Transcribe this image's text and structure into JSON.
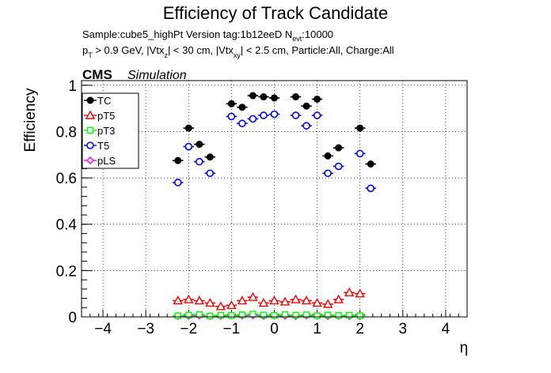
{
  "chart_data": {
    "type": "scatter",
    "title": "Efficiency of Track Candidate",
    "subtitle_line1": "Sample:cube5_highPt   Version tag:1b12eeD  N",
    "subtitle_line1_sub": "evt",
    "subtitle_line1_end": ":10000",
    "subtitle_line2": "p",
    "subtitle_line2_sub1": "T",
    "subtitle_line2_mid1": " > 0.9 GeV, |Vtx",
    "subtitle_line2_sub2": "z",
    "subtitle_line2_mid2": "| < 30 cm, |Vtx",
    "subtitle_line2_sub3": "xy",
    "subtitle_line2_end": "| < 2.5 cm, Particle:All, Charge:All",
    "cms_label": "CMS",
    "simulation_label": "Simulation",
    "xlabel": "η",
    "ylabel": "Efficiency",
    "xlim": [
      -4.5,
      4.5
    ],
    "ylim": [
      0,
      1.02
    ],
    "xticks": [
      "−4",
      "−3",
      "−2",
      "−1",
      "0",
      "1",
      "2",
      "3",
      "4"
    ],
    "xtick_values": [
      -4,
      -3,
      -2,
      -1,
      0,
      1,
      2,
      3,
      4
    ],
    "yticks": [
      "0",
      "0.2",
      "0.4",
      "0.6",
      "0.8",
      "1"
    ],
    "ytick_values": [
      0,
      0.2,
      0.4,
      0.6,
      0.8,
      1.0
    ],
    "grid": true,
    "legend_position": "top-left",
    "x_bin_half_width": 0.125,
    "x": [
      -2.25,
      -2.0,
      -1.75,
      -1.5,
      -1.25,
      -1.0,
      -0.75,
      -0.5,
      -0.25,
      0.0,
      0.25,
      0.5,
      0.75,
      1.0,
      1.25,
      1.5,
      1.75,
      2.0,
      2.25
    ],
    "series": [
      {
        "name": "TC",
        "color": "#000000",
        "marker": "filled-circle",
        "values": [
          0.675,
          0.815,
          0.745,
          0.69,
          0.92,
          0.905,
          0.955,
          0.95,
          0.945,
          0.95,
          0.91,
          0.94,
          0.695,
          0.73,
          0.815,
          0.66,
          null,
          null,
          null
        ],
        "x": [
          -2.25,
          -2.0,
          -1.75,
          -1.5,
          -1.0,
          -0.75,
          -0.5,
          -0.25,
          0.0,
          0.5,
          0.75,
          1.0,
          1.25,
          1.5,
          2.0,
          2.25,
          null,
          null,
          null
        ]
      },
      {
        "name": "pT5",
        "color": "#ff0000",
        "marker": "open-triangle",
        "values": [
          0.07,
          0.075,
          0.07,
          0.06,
          0.045,
          0.05,
          0.07,
          0.085,
          0.06,
          0.07,
          0.065,
          0.075,
          0.07,
          0.06,
          0.055,
          0.075,
          0.105,
          0.1
        ],
        "x": [
          -2.25,
          -2.0,
          -1.75,
          -1.5,
          -1.25,
          -1.0,
          -0.75,
          -0.5,
          -0.25,
          0.0,
          0.25,
          0.5,
          0.75,
          1.0,
          1.25,
          1.5,
          1.75,
          2.0
        ]
      },
      {
        "name": "pT3",
        "color": "#00ff00",
        "marker": "open-square",
        "values": [
          0.005,
          0.008,
          0.01,
          0.004,
          0.007,
          0.006,
          0.009,
          0.012,
          0.008,
          0.006,
          0.01,
          0.007,
          0.009,
          0.005,
          0.008,
          0.006,
          0.007,
          0.005
        ],
        "x": [
          -2.25,
          -2.0,
          -1.75,
          -1.5,
          -1.25,
          -1.0,
          -0.75,
          -0.5,
          -0.25,
          0.0,
          0.25,
          0.5,
          0.75,
          1.0,
          1.25,
          1.5,
          1.75,
          2.0
        ]
      },
      {
        "name": "T5",
        "color": "#0000ff",
        "marker": "open-circle",
        "values": [
          0.58,
          0.735,
          0.67,
          0.62,
          0.865,
          0.835,
          0.855,
          0.87,
          0.875,
          0.87,
          0.825,
          0.87,
          0.62,
          0.65,
          0.705,
          0.555
        ],
        "x": [
          -2.25,
          -2.0,
          -1.75,
          -1.5,
          -1.0,
          -0.75,
          -0.5,
          -0.25,
          0.0,
          0.5,
          0.75,
          1.0,
          1.25,
          1.5,
          2.0,
          2.25
        ]
      },
      {
        "name": "pLS",
        "color": "#ff00ff",
        "marker": "open-diamond",
        "values": [
          0.003,
          0.004,
          0.005,
          0.003,
          0.004,
          0.006,
          0.005,
          0.006,
          0.004,
          0.005,
          0.004,
          0.003,
          0.005,
          0.004,
          0.003,
          0.004,
          0.003,
          0.002
        ],
        "x": [
          -2.25,
          -2.0,
          -1.75,
          -1.5,
          -1.25,
          -1.0,
          -0.75,
          -0.5,
          -0.25,
          0.0,
          0.25,
          0.5,
          0.75,
          1.0,
          1.25,
          1.5,
          1.75,
          2.0
        ]
      }
    ]
  }
}
